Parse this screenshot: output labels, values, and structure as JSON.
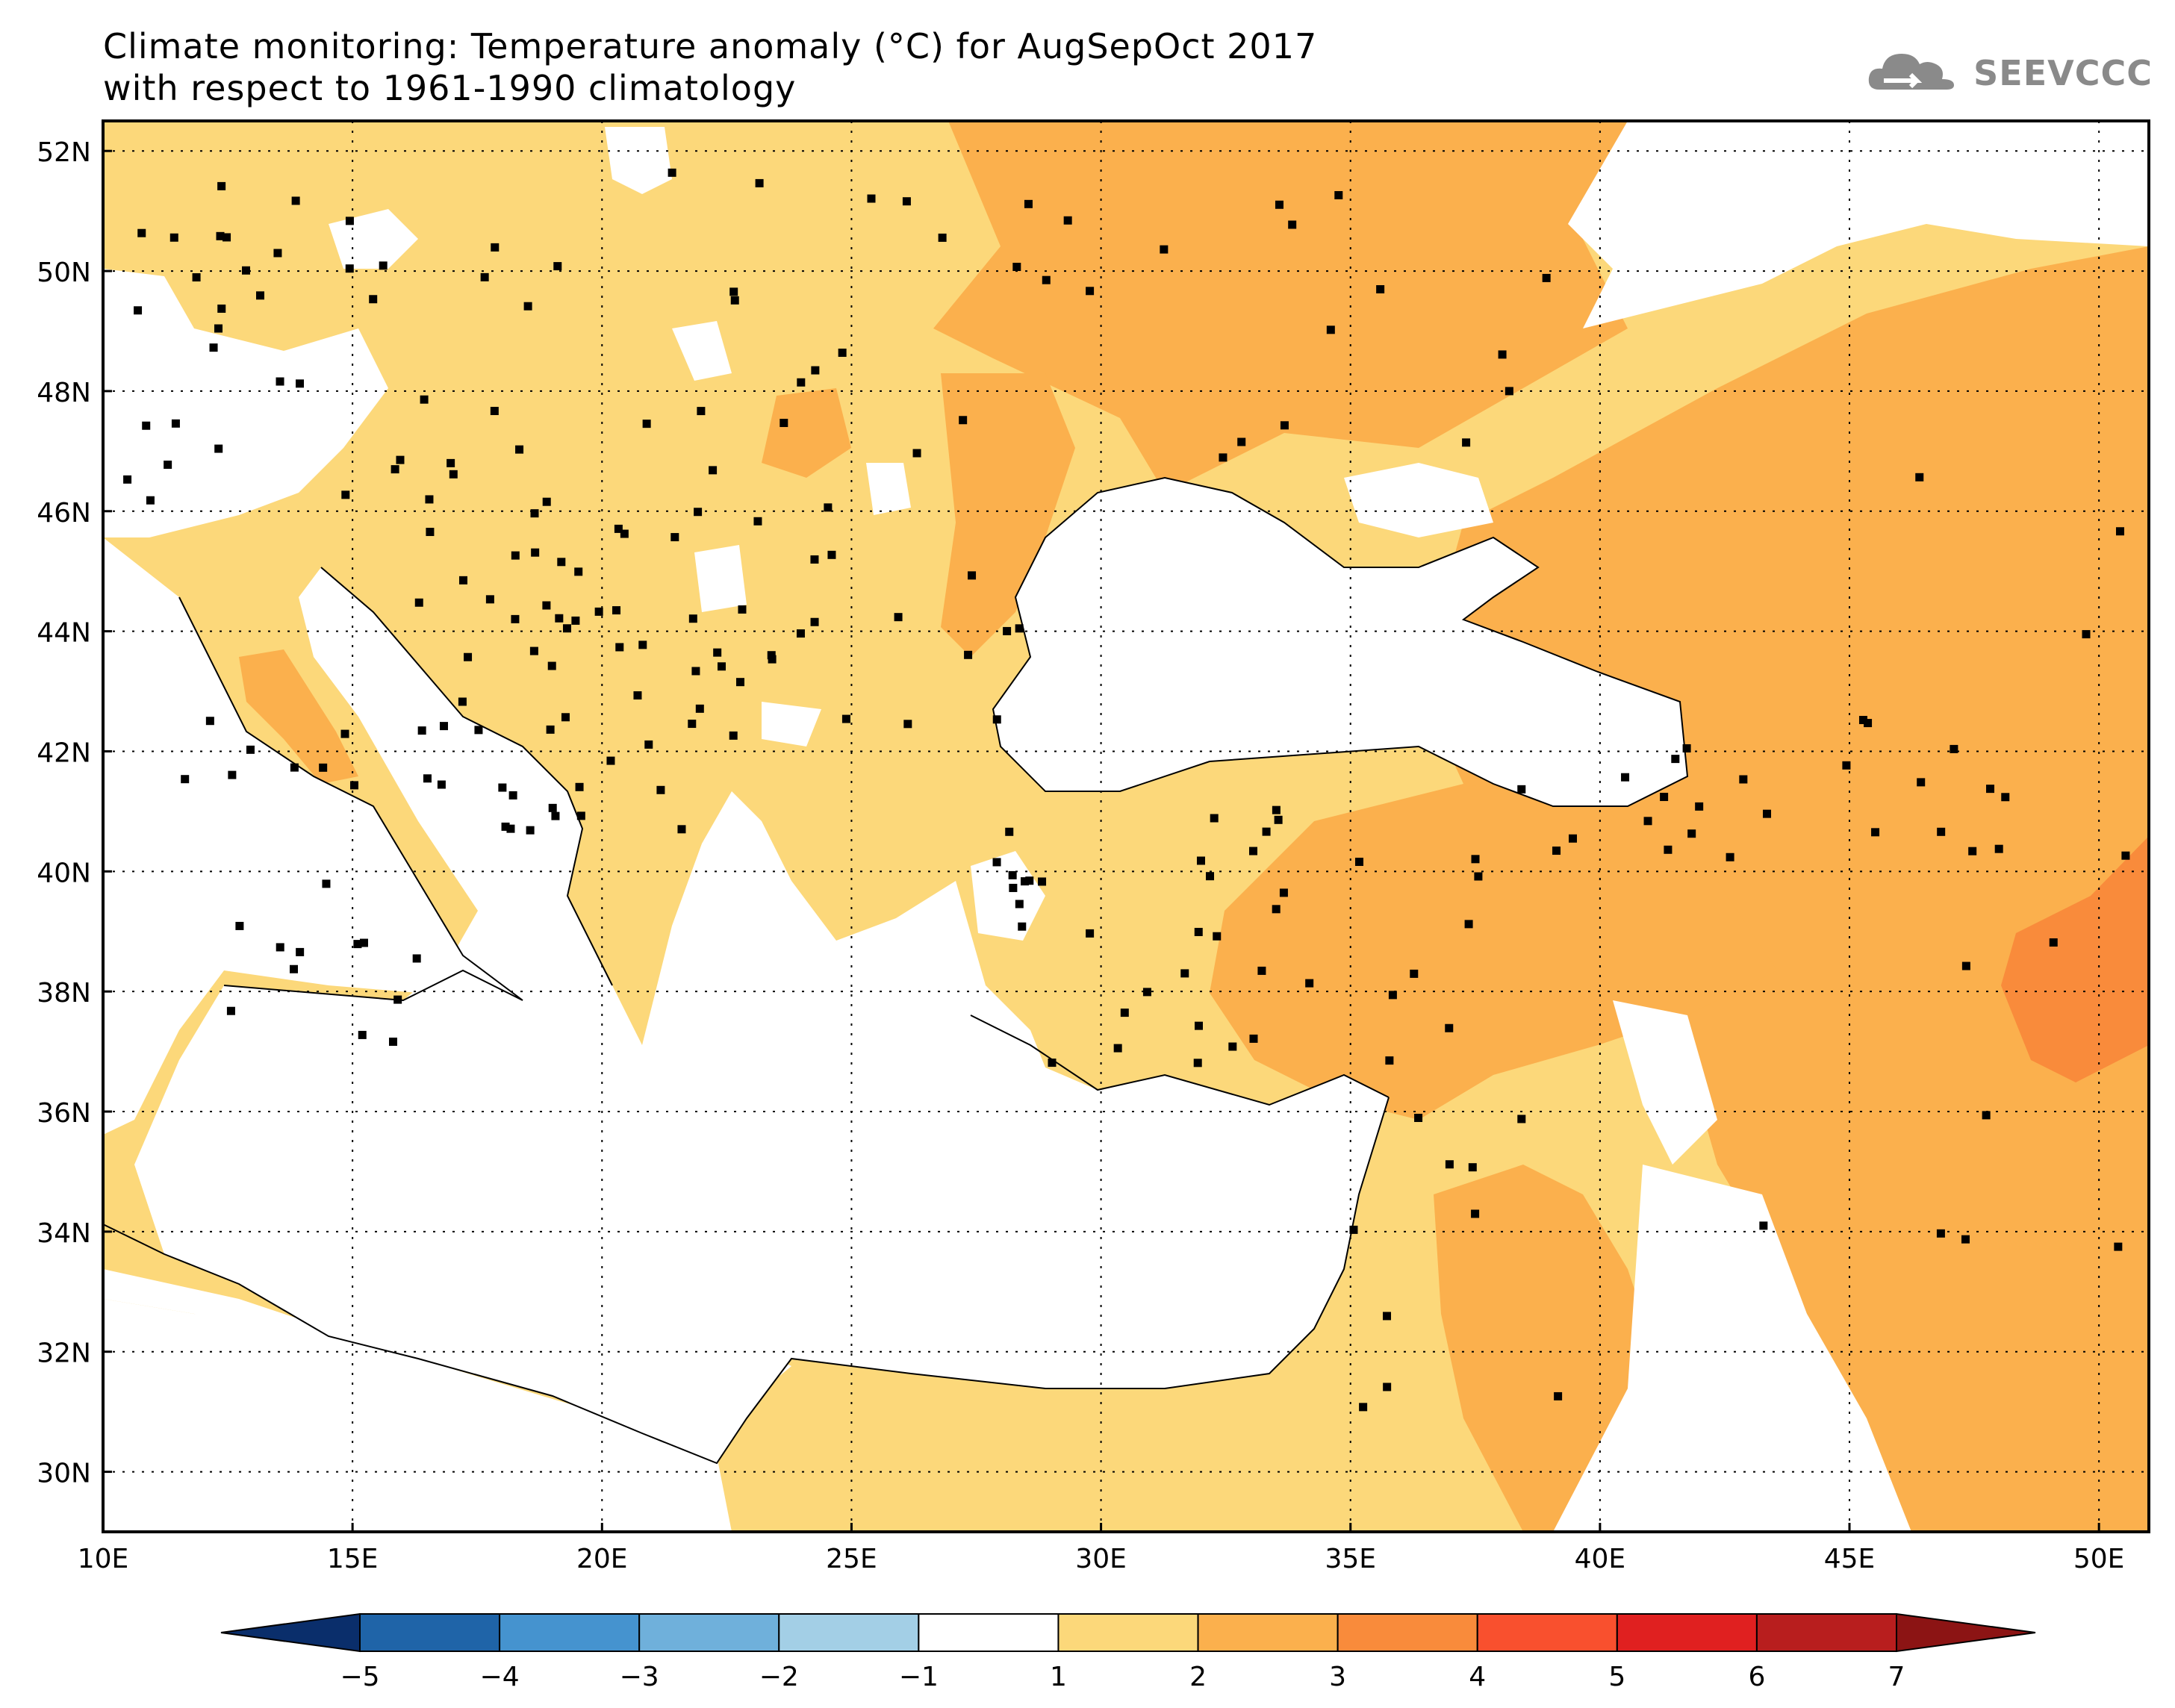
{
  "title": {
    "line1": "Climate monitoring: Temperature anomaly (°C) for AugSepOct 2017",
    "line2": "with respect to 1961-1990 climatology"
  },
  "logo": {
    "text": "SEEVCCC",
    "icon": "cloud-icon"
  },
  "map": {
    "lon_range": [
      10,
      51
    ],
    "lat_range": [
      29,
      52.5
    ],
    "lat_labels": [
      "52N",
      "50N",
      "48N",
      "46N",
      "44N",
      "42N",
      "40N",
      "38N",
      "36N",
      "34N",
      "32N",
      "30N"
    ],
    "lat_values": [
      52,
      50,
      48,
      46,
      44,
      42,
      40,
      38,
      36,
      34,
      32,
      30
    ],
    "lon_labels": [
      "10E",
      "15E",
      "20E",
      "25E",
      "30E",
      "35E",
      "40E",
      "45E",
      "50E"
    ],
    "lon_values": [
      10,
      15,
      20,
      25,
      30,
      35,
      40,
      45,
      50
    ],
    "grid": "dotted",
    "colors": {
      "land_1_2": "#fcd87a",
      "band_2_3": "#fbb04d",
      "band_3_4": "#f98b3b",
      "sea": "#ffffff"
    }
  },
  "colorbar": {
    "labels": [
      "-5",
      "-4",
      "-3",
      "-2",
      "-1",
      "1",
      "2",
      "3",
      "4",
      "5",
      "6",
      "7"
    ],
    "colors": [
      "#0a2e6b",
      "#1f64a8",
      "#4593cf",
      "#6fb0db",
      "#a3cfe6",
      "#ffffff",
      "#fcd87a",
      "#fbb04d",
      "#f98b3b",
      "#f9502e",
      "#e02020",
      "#b81e1e",
      "#8c1414"
    ]
  }
}
